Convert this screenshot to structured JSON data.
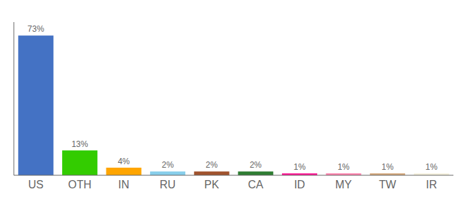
{
  "chart_data": {
    "type": "bar",
    "categories": [
      "US",
      "OTH",
      "IN",
      "RU",
      "PK",
      "CA",
      "ID",
      "MY",
      "TW",
      "IR"
    ],
    "values": [
      73,
      13,
      4,
      2,
      2,
      2,
      1,
      1,
      1,
      1
    ],
    "value_labels": [
      "73%",
      "13%",
      "4%",
      "2%",
      "2%",
      "2%",
      "1%",
      "1%",
      "1%",
      "1%"
    ],
    "colors": [
      "#4472C4",
      "#33CC00",
      "#FFA500",
      "#87CEEB",
      "#A0522D",
      "#2E7D32",
      "#FF1493",
      "#FF80AB",
      "#D2A679",
      "#F5F0DC"
    ],
    "ylim": [
      0,
      80
    ],
    "grid": false,
    "data_labels": true,
    "tick_labels": "x"
  }
}
